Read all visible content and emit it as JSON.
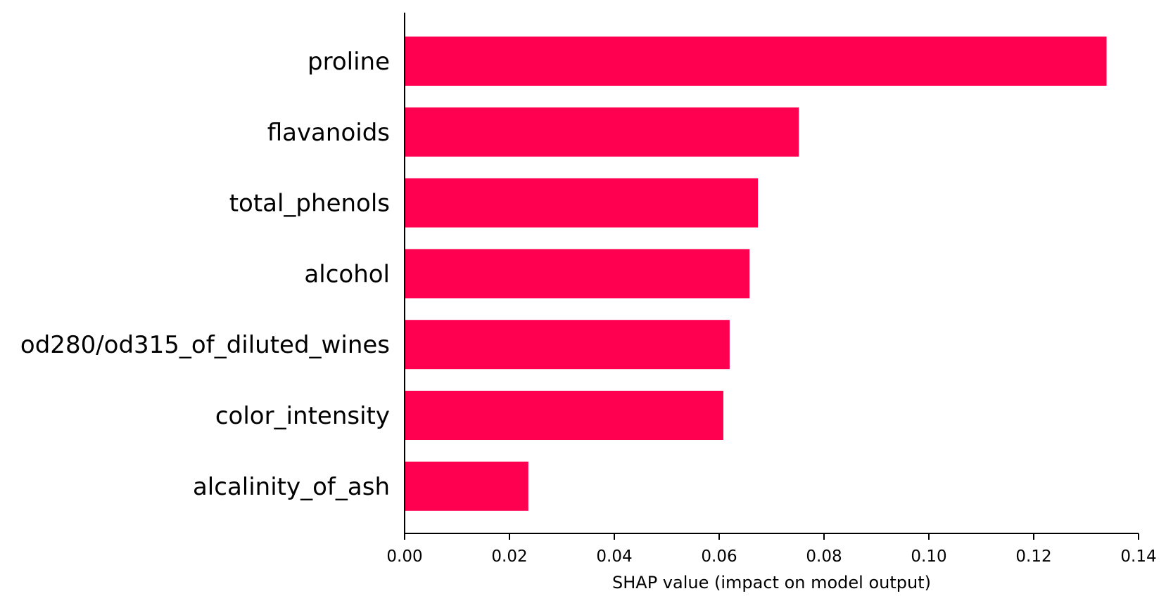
{
  "chart_data": {
    "type": "bar",
    "orientation": "horizontal",
    "categories": [
      "proline",
      "flavanoids",
      "total_phenols",
      "alcohol",
      "od280/od315_of_diluted_wines",
      "color_intensity",
      "alcalinity_of_ash"
    ],
    "values": [
      0.1339,
      0.0752,
      0.0674,
      0.0658,
      0.062,
      0.0608,
      0.0236
    ],
    "xlabel": "SHAP value (impact on model output)",
    "ylabel": "",
    "xlim": [
      0,
      0.14
    ],
    "xticks": [
      "0.00",
      "0.02",
      "0.04",
      "0.06",
      "0.08",
      "0.10",
      "0.12",
      "0.14"
    ],
    "bar_color": "#ff0051",
    "grid": false
  }
}
